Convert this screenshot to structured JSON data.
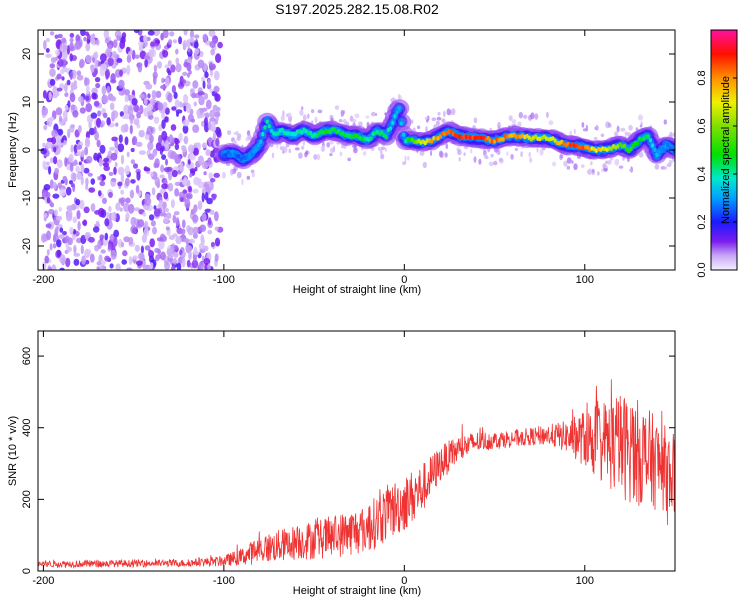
{
  "chart_data": [
    {
      "type": "heatmap",
      "title": "S197.2025.282.15.08.R02",
      "xlabel": "Height of straight line (km)",
      "ylabel": "Frequency (Hz)",
      "xlim": [
        -203,
        150
      ],
      "ylim": [
        -25,
        25
      ],
      "xticks": [
        -200,
        -100,
        0,
        100
      ],
      "yticks": [
        -20,
        -10,
        0,
        10,
        20
      ],
      "colorbar": {
        "label": "Normalized spectral amplitude",
        "range": [
          0,
          1
        ],
        "ticks": [
          0.0,
          0.2,
          0.4,
          0.6,
          0.8
        ]
      },
      "ridge": {
        "x": [
          -100,
          -95,
          -90,
          -85,
          -80,
          -76,
          -72,
          -68,
          -62,
          -56,
          -50,
          -44,
          -38,
          -32,
          -26,
          -20,
          -15,
          -10,
          -6,
          -3,
          0,
          5,
          10,
          15,
          20,
          25,
          30,
          40,
          50,
          60,
          70,
          80,
          90,
          95,
          100,
          105,
          110,
          115,
          120,
          125,
          130,
          135,
          140,
          145,
          150
        ],
        "y": [
          -1,
          -0.5,
          -2,
          -1,
          1,
          6,
          3,
          4,
          3,
          4,
          3,
          4,
          4,
          3,
          3,
          2,
          4,
          3,
          6,
          9,
          2,
          2,
          1.5,
          2,
          3,
          4,
          3,
          2.5,
          2,
          3,
          2.5,
          2.5,
          1,
          1,
          0.5,
          0,
          0,
          0.5,
          1,
          0,
          2,
          3,
          -1,
          1,
          0
        ],
        "amplitude": [
          0.25,
          0.3,
          0.25,
          0.3,
          0.35,
          0.45,
          0.4,
          0.45,
          0.4,
          0.45,
          0.45,
          0.5,
          0.5,
          0.5,
          0.5,
          0.45,
          0.45,
          0.45,
          0.4,
          0.35,
          0.4,
          0.6,
          0.7,
          0.8,
          0.85,
          0.9,
          0.9,
          0.95,
          0.9,
          0.85,
          0.75,
          0.7,
          0.9,
          0.95,
          0.85,
          0.8,
          0.75,
          0.7,
          0.6,
          0.55,
          0.5,
          0.45,
          0.35,
          0.3,
          0.25
        ]
      },
      "noise_region": {
        "xlim": [
          -200,
          -102
        ],
        "ylim": [
          -25,
          25
        ]
      }
    },
    {
      "type": "line",
      "xlabel": "Height of straight line (km)",
      "ylabel": "SNR (10 * v/v)",
      "xlim": [
        -203,
        150
      ],
      "ylim": [
        0,
        670
      ],
      "xticks": [
        -200,
        -100,
        0,
        100
      ],
      "yticks": [
        0,
        200,
        400,
        600
      ],
      "series": [
        {
          "name": "SNR",
          "color": "#ee3333",
          "envelope": {
            "x": [
              -203,
              -180,
              -150,
              -120,
              -100,
              -90,
              -80,
              -60,
              -40,
              -20,
              -10,
              0,
              10,
              20,
              30,
              40,
              50,
              60,
              70,
              80,
              90,
              100,
              110,
              120,
              130,
              140,
              150
            ],
            "mean": [
              20,
              20,
              21,
              22,
              28,
              40,
              60,
              80,
              95,
              120,
              160,
              190,
              230,
              300,
              340,
              360,
              365,
              370,
              375,
              380,
              375,
              370,
              360,
              350,
              330,
              300,
              270
            ],
            "spread": [
              10,
              10,
              10,
              10,
              15,
              25,
              40,
              50,
              60,
              70,
              80,
              80,
              70,
              50,
              40,
              30,
              25,
              25,
              25,
              30,
              45,
              80,
              120,
              150,
              150,
              130,
              110
            ]
          }
        }
      ]
    }
  ]
}
